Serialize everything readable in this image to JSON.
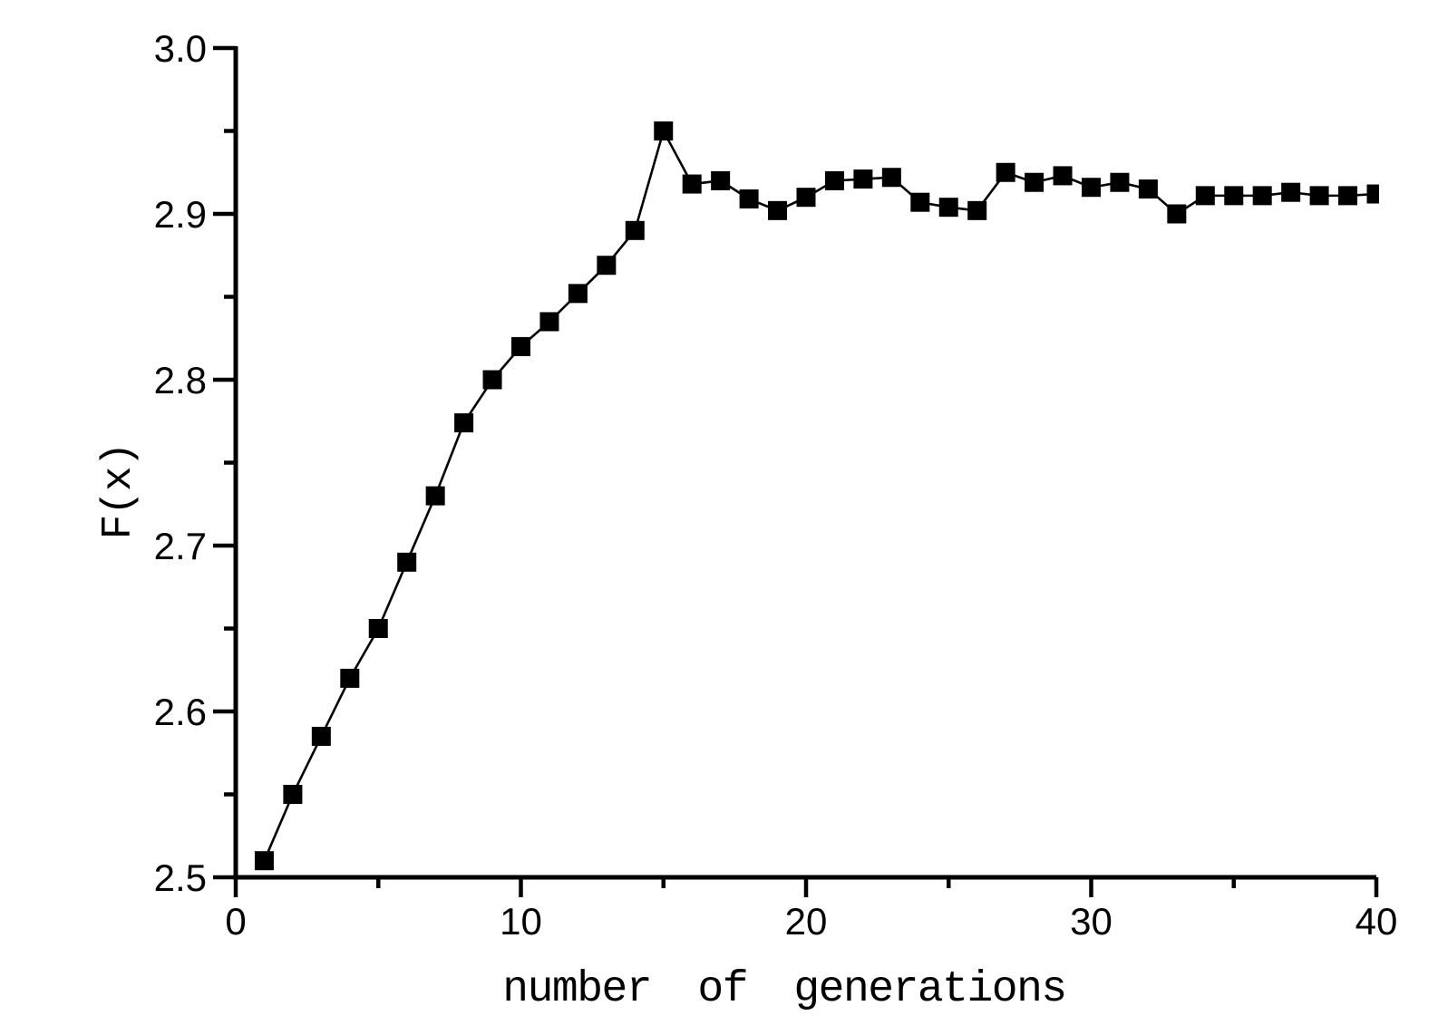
{
  "chart_data": {
    "type": "line",
    "title": "",
    "xlabel": "number of generations",
    "ylabel": "F(x)",
    "x": [
      1,
      2,
      3,
      4,
      5,
      6,
      7,
      8,
      9,
      10,
      11,
      12,
      13,
      14,
      15,
      16,
      17,
      18,
      19,
      20,
      21,
      22,
      23,
      24,
      25,
      26,
      27,
      28,
      29,
      30,
      31,
      32,
      33,
      34,
      35,
      36,
      37,
      38,
      39,
      40
    ],
    "values": [
      2.51,
      2.55,
      2.585,
      2.62,
      2.65,
      2.69,
      2.73,
      2.774,
      2.8,
      2.82,
      2.835,
      2.852,
      2.869,
      2.89,
      2.95,
      2.918,
      2.92,
      2.909,
      2.902,
      2.91,
      2.92,
      2.921,
      2.922,
      2.907,
      2.904,
      2.902,
      2.925,
      2.919,
      2.923,
      2.916,
      2.919,
      2.915,
      2.9,
      2.911,
      2.911,
      2.911,
      2.913,
      2.911,
      2.911,
      2.912
    ],
    "xlim": [
      0,
      40
    ],
    "ylim": [
      2.5,
      3.0
    ],
    "x_ticks_major": [
      0,
      10,
      20,
      30,
      40
    ],
    "x_ticks_minor": [
      5,
      15,
      25,
      35
    ],
    "y_ticks_major": [
      2.5,
      2.6,
      2.7,
      2.8,
      2.9,
      3.0
    ],
    "y_ticks_minor": [
      2.55,
      2.65,
      2.75,
      2.85,
      2.95
    ],
    "y_tick_decimals": 1,
    "x_tick_decimals": 0,
    "marker": "filled-square",
    "grid": false,
    "legend": "none",
    "colors": {
      "line": "#000000",
      "marker": "#000000",
      "axis": "#000000",
      "background": "#ffffff"
    }
  }
}
